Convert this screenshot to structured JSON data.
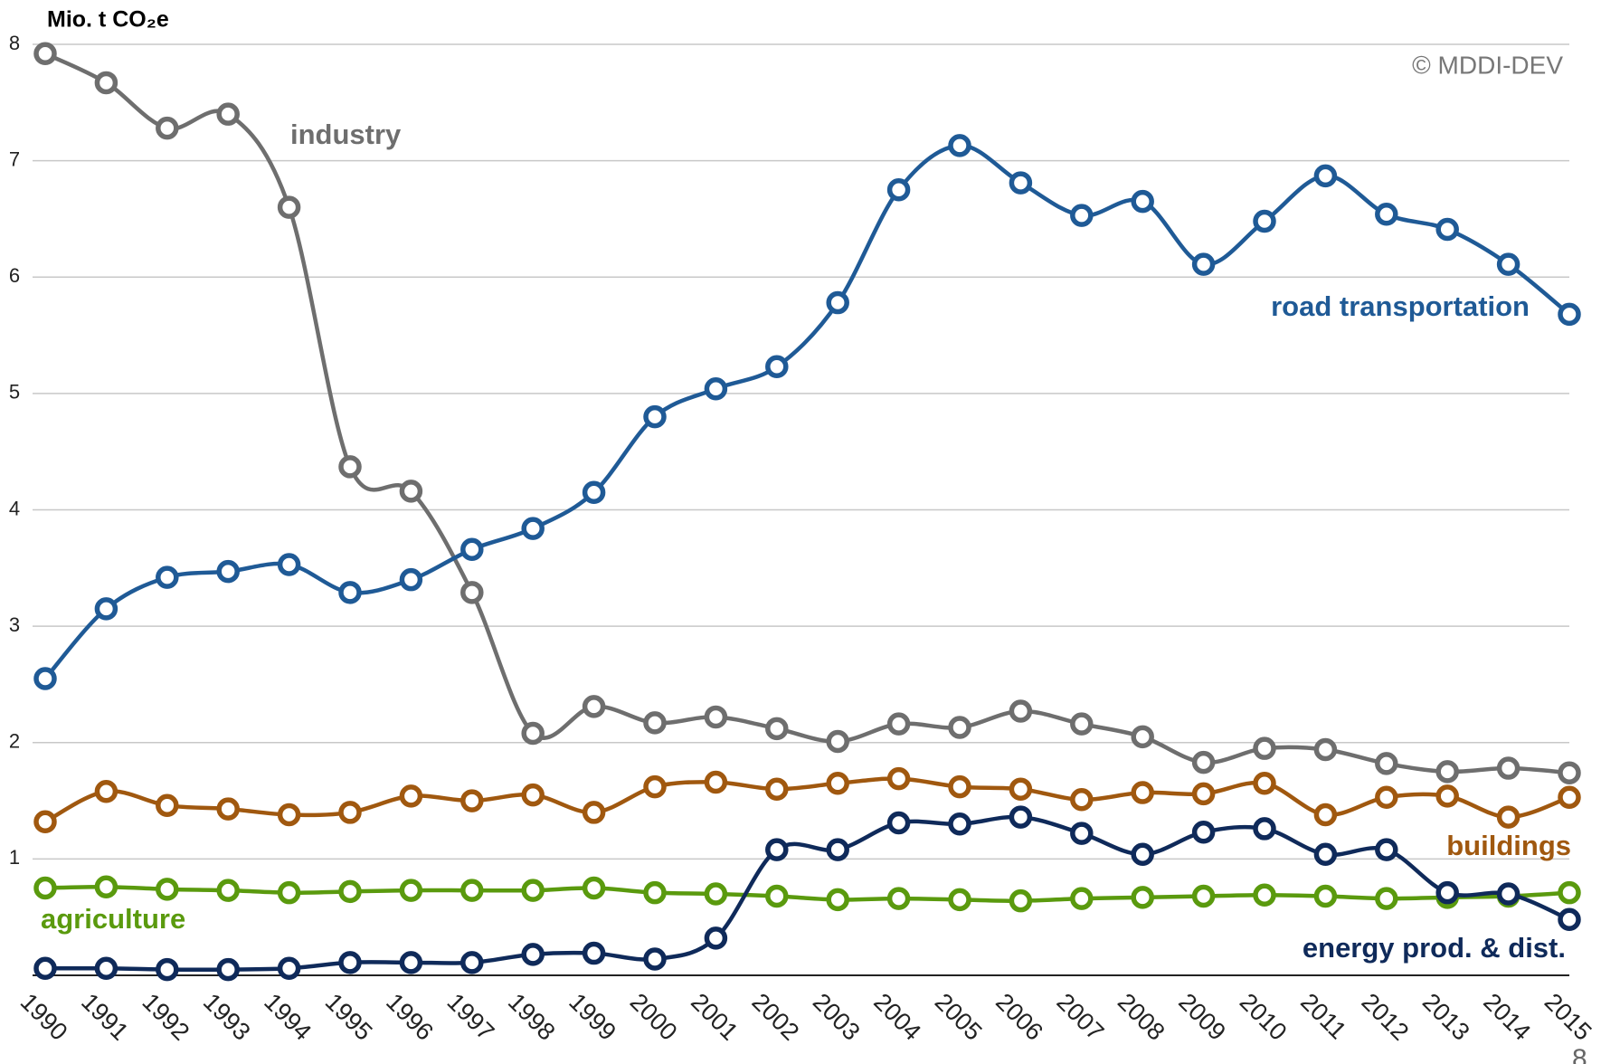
{
  "chart_data": {
    "type": "line",
    "title": "Mio. t CO₂e",
    "source": "© MDDI-DEV",
    "page_number": "8",
    "categories": [
      "1990",
      "1991",
      "1992",
      "1993",
      "1994",
      "1995",
      "1996",
      "1997",
      "1998",
      "1999",
      "2000",
      "2001",
      "2002",
      "2003",
      "2004",
      "2005",
      "2006",
      "2007",
      "2008",
      "2009",
      "2010",
      "2011",
      "2012",
      "2013",
      "2014",
      "2015"
    ],
    "ylim": [
      0,
      8
    ],
    "yticks": [
      1,
      2,
      3,
      4,
      5,
      6,
      7,
      8
    ],
    "grid": true,
    "series": [
      {
        "name": "industry",
        "color": "#6e6e6e",
        "values": [
          7.92,
          7.67,
          7.28,
          7.4,
          6.6,
          4.37,
          4.16,
          3.29,
          2.08,
          2.31,
          2.17,
          2.22,
          2.12,
          2.01,
          2.16,
          2.13,
          2.27,
          2.16,
          2.05,
          1.83,
          1.95,
          1.94,
          1.82,
          1.75,
          1.78,
          1.74
        ]
      },
      {
        "name": "road transportation",
        "color": "#1f5a96",
        "values": [
          2.55,
          3.15,
          3.42,
          3.47,
          3.53,
          3.29,
          3.4,
          3.66,
          3.84,
          4.15,
          4.8,
          5.04,
          5.23,
          5.78,
          6.75,
          7.13,
          6.81,
          6.53,
          6.65,
          6.11,
          6.48,
          6.87,
          6.54,
          6.41,
          6.11,
          5.68
        ]
      },
      {
        "name": "buildings",
        "color": "#a0580f",
        "values": [
          1.32,
          1.58,
          1.46,
          1.43,
          1.38,
          1.4,
          1.54,
          1.5,
          1.55,
          1.4,
          1.62,
          1.66,
          1.6,
          1.65,
          1.69,
          1.62,
          1.6,
          1.51,
          1.57,
          1.56,
          1.65,
          1.38,
          1.53,
          1.54,
          1.36,
          1.53
        ]
      },
      {
        "name": "agriculture",
        "color": "#5a9a0e",
        "values": [
          0.75,
          0.76,
          0.74,
          0.73,
          0.71,
          0.72,
          0.73,
          0.73,
          0.73,
          0.75,
          0.71,
          0.7,
          0.68,
          0.65,
          0.66,
          0.65,
          0.64,
          0.66,
          0.67,
          0.68,
          0.69,
          0.68,
          0.66,
          0.67,
          0.68,
          0.71
        ]
      },
      {
        "name": "energy prod. & dist.",
        "color": "#0f2a5a",
        "values": [
          0.06,
          0.06,
          0.05,
          0.05,
          0.06,
          0.11,
          0.11,
          0.11,
          0.18,
          0.19,
          0.14,
          0.32,
          1.08,
          1.08,
          1.31,
          1.3,
          1.36,
          1.22,
          1.04,
          1.23,
          1.26,
          1.04,
          1.08,
          0.71,
          0.7,
          0.48
        ]
      }
    ]
  }
}
